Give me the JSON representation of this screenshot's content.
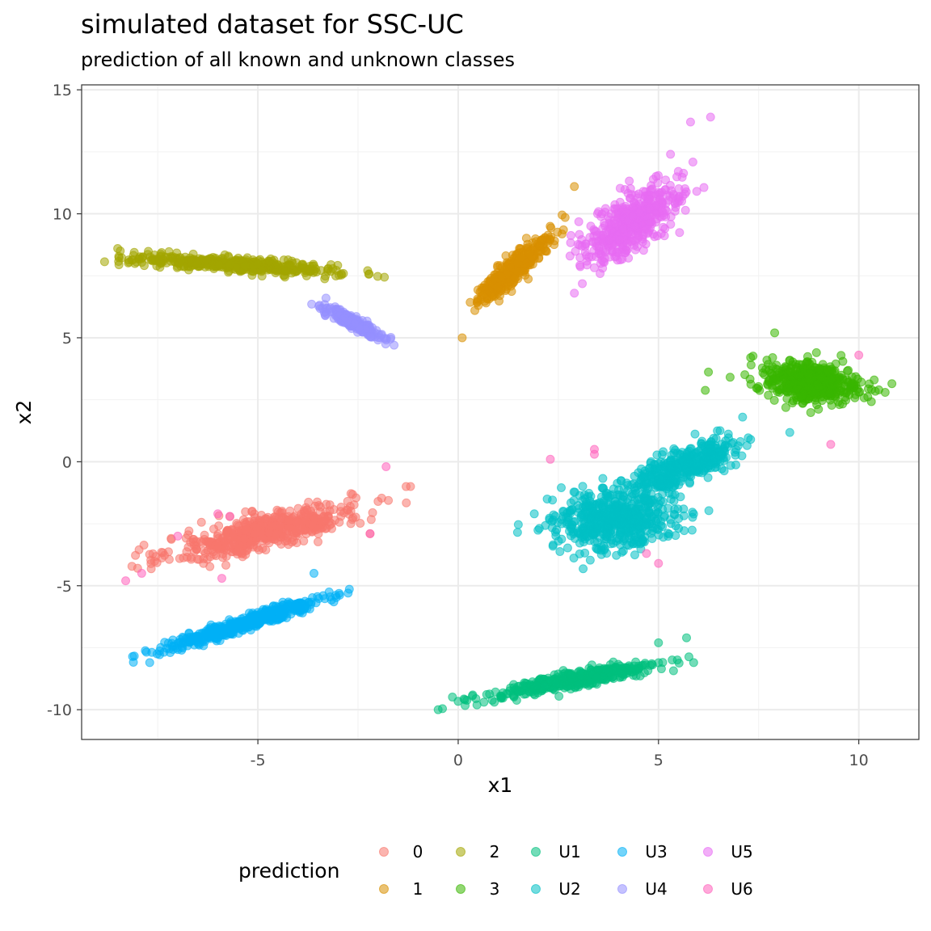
{
  "chart_data": {
    "type": "scatter",
    "title": "simulated dataset for SSC-UC",
    "subtitle": "prediction of all known and unknown classes",
    "xlabel": "x1",
    "ylabel": "x2",
    "xlim": [
      -9.4,
      11.5
    ],
    "ylim": [
      -11.2,
      15.2
    ],
    "x_ticks": [
      -5,
      0,
      5,
      10
    ],
    "x_tick_labels": [
      "-5",
      "0",
      "5",
      "10"
    ],
    "y_ticks": [
      -10,
      -5,
      0,
      5,
      10,
      15
    ],
    "y_tick_labels": [
      "-10",
      "-5",
      "0",
      "5",
      "10",
      "15"
    ],
    "grid": true,
    "legend": {
      "title": "prediction",
      "placement": "bottom",
      "entries": [
        "0",
        "1",
        "2",
        "3",
        "U1",
        "U2",
        "U3",
        "U4",
        "U5",
        "U6"
      ]
    },
    "series": [
      {
        "name": "0",
        "color": "#F8766D",
        "clusters": [
          {
            "center": [
              -4.8,
              -2.8
            ],
            "n": 560,
            "sd_major": 1.25,
            "sd_minor": 0.34,
            "slope": 0.42
          }
        ],
        "outliers": [
          [
            -2.2,
            -2.9
          ],
          [
            -1.3,
            -1.0
          ],
          [
            -2.0,
            -1.6
          ]
        ]
      },
      {
        "name": "1",
        "color": "#D89000",
        "clusters": [
          {
            "center": [
              1.4,
              7.8
            ],
            "n": 330,
            "sd_major": 0.85,
            "sd_minor": 0.16,
            "slope": 1.55
          }
        ],
        "outliers": [
          [
            0.1,
            5.0
          ],
          [
            2.9,
            11.1
          ]
        ]
      },
      {
        "name": "2",
        "color": "#A3A500",
        "clusters": [
          {
            "center": [
              -5.6,
              7.95
            ],
            "n": 420,
            "sd_major": 1.3,
            "sd_minor": 0.14,
            "slope": -0.11
          }
        ],
        "outliers": [
          [
            -8.5,
            8.6
          ],
          [
            -3.6,
            7.9
          ]
        ]
      },
      {
        "name": "3",
        "color": "#39B600",
        "clusters": [
          {
            "center": [
              8.8,
              3.2
            ],
            "n": 520,
            "sd_major": 0.62,
            "sd_minor": 0.38,
            "slope": -0.3
          }
        ],
        "outliers": [
          [
            7.3,
            4.2
          ],
          [
            10.5,
            2.9
          ],
          [
            7.9,
            5.2
          ]
        ]
      },
      {
        "name": "U1",
        "color": "#00BF7D",
        "clusters": [
          {
            "center": [
              2.9,
              -8.8
            ],
            "n": 420,
            "sd_major": 1.15,
            "sd_minor": 0.16,
            "slope": 0.3
          }
        ],
        "outliers": [
          [
            -0.5,
            -10.0
          ],
          [
            5.7,
            -7.1
          ],
          [
            5.0,
            -7.3
          ]
        ]
      },
      {
        "name": "U2",
        "color": "#00BFC4",
        "clusters": [
          {
            "center": [
              3.9,
              -2.3
            ],
            "n": 560,
            "sd_major": 0.75,
            "sd_minor": 0.6,
            "slope": 0.25
          },
          {
            "center": [
              5.6,
              -0.2
            ],
            "n": 380,
            "sd_major": 0.8,
            "sd_minor": 0.3,
            "slope": 0.7
          }
        ],
        "outliers": [
          [
            7.3,
            0.9
          ],
          [
            1.9,
            -2.1
          ],
          [
            7.1,
            1.8
          ]
        ]
      },
      {
        "name": "U3",
        "color": "#00B0F6",
        "clusters": [
          {
            "center": [
              -5.3,
              -6.5
            ],
            "n": 520,
            "sd_major": 1.1,
            "sd_minor": 0.12,
            "slope": 0.52
          }
        ],
        "outliers": [
          [
            -3.6,
            -4.5
          ],
          [
            -7.7,
            -8.1
          ]
        ]
      },
      {
        "name": "U4",
        "color": "#9590FF",
        "clusters": [
          {
            "center": [
              -2.6,
              5.6
            ],
            "n": 240,
            "sd_major": 0.48,
            "sd_minor": 0.09,
            "slope": -0.85
          }
        ],
        "outliers": [
          [
            -3.3,
            6.6
          ],
          [
            -1.6,
            4.7
          ]
        ]
      },
      {
        "name": "U5",
        "color": "#E76BF3",
        "clusters": [
          {
            "center": [
              4.3,
              9.6
            ],
            "n": 480,
            "sd_major": 0.95,
            "sd_minor": 0.36,
            "slope": 1.55
          }
        ],
        "outliers": [
          [
            5.8,
            13.7
          ],
          [
            6.3,
            13.9
          ],
          [
            2.9,
            6.8
          ],
          [
            5.3,
            12.4
          ]
        ]
      },
      {
        "name": "U6",
        "color": "#FF62BC",
        "clusters": [],
        "outliers": [
          [
            -8.3,
            -4.8
          ],
          [
            -7.9,
            -4.5
          ],
          [
            -5.9,
            -4.7
          ],
          [
            -7.0,
            -3.0
          ],
          [
            -6.0,
            -2.1
          ],
          [
            -5.7,
            -2.2
          ],
          [
            -2.2,
            -2.9
          ],
          [
            -1.8,
            -0.2
          ],
          [
            2.3,
            0.1
          ],
          [
            3.4,
            0.5
          ],
          [
            5.0,
            -4.1
          ],
          [
            9.3,
            0.7
          ],
          [
            10.0,
            4.3
          ],
          [
            4.7,
            -3.7
          ],
          [
            3.4,
            0.3
          ]
        ]
      }
    ]
  }
}
